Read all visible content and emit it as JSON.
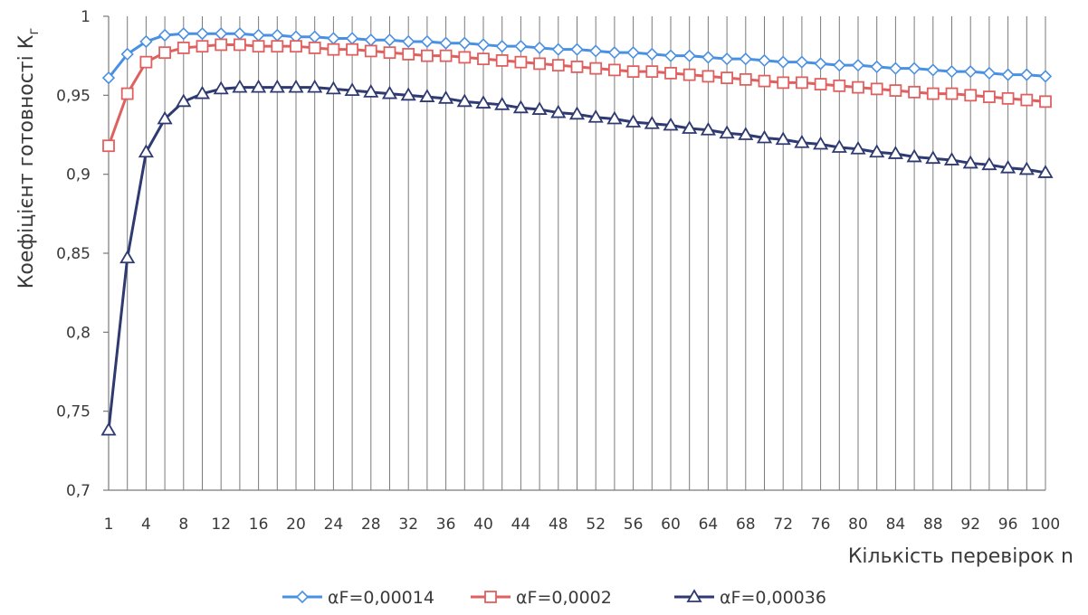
{
  "chart_data": {
    "type": "line",
    "title": "",
    "xlabel": "Кількість перевірок n",
    "ylabel": "Коефіцієнт готовності К",
    "ylabel_subscript": "г",
    "ylim": [
      0.7,
      1.0
    ],
    "yticks": [
      "0,7",
      "0,75",
      "0,8",
      "0,85",
      "0,9",
      "0,95",
      "1"
    ],
    "ytick_values": [
      0.7,
      0.75,
      0.8,
      0.85,
      0.9,
      0.95,
      1.0
    ],
    "x": [
      1,
      2,
      4,
      6,
      8,
      10,
      12,
      14,
      16,
      18,
      20,
      22,
      24,
      26,
      28,
      30,
      32,
      34,
      36,
      38,
      40,
      42,
      44,
      46,
      48,
      50,
      52,
      54,
      56,
      58,
      60,
      62,
      64,
      66,
      68,
      70,
      72,
      74,
      76,
      78,
      80,
      82,
      84,
      86,
      88,
      90,
      92,
      94,
      96,
      98,
      100
    ],
    "xtick_labels": [
      "1",
      "4",
      "8",
      "12",
      "16",
      "20",
      "24",
      "28",
      "32",
      "36",
      "40",
      "44",
      "48",
      "52",
      "56",
      "60",
      "64",
      "68",
      "72",
      "76",
      "80",
      "84",
      "88",
      "92",
      "96",
      "100"
    ],
    "xtick_indices": [
      0,
      2,
      4,
      6,
      8,
      10,
      12,
      14,
      16,
      18,
      20,
      22,
      24,
      26,
      28,
      30,
      32,
      34,
      36,
      38,
      40,
      42,
      44,
      46,
      48,
      50
    ],
    "grid": "vertical",
    "legend": "bottom",
    "series": [
      {
        "name": "αF=0,00014",
        "color": "#4a90e2",
        "marker": "diamond",
        "values": [
          0.961,
          0.976,
          0.984,
          0.988,
          0.989,
          0.989,
          0.989,
          0.989,
          0.988,
          0.988,
          0.987,
          0.987,
          0.986,
          0.986,
          0.985,
          0.985,
          0.984,
          0.984,
          0.983,
          0.983,
          0.982,
          0.981,
          0.981,
          0.98,
          0.979,
          0.979,
          0.978,
          0.977,
          0.977,
          0.976,
          0.975,
          0.975,
          0.974,
          0.973,
          0.973,
          0.972,
          0.971,
          0.971,
          0.97,
          0.969,
          0.969,
          0.968,
          0.967,
          0.967,
          0.966,
          0.965,
          0.965,
          0.964,
          0.963,
          0.963,
          0.962
        ]
      },
      {
        "name": "αF=0,0002",
        "color": "#e06060",
        "marker": "square",
        "values": [
          0.918,
          0.951,
          0.971,
          0.977,
          0.98,
          0.981,
          0.982,
          0.982,
          0.981,
          0.981,
          0.981,
          0.98,
          0.979,
          0.979,
          0.978,
          0.977,
          0.976,
          0.975,
          0.975,
          0.974,
          0.973,
          0.972,
          0.971,
          0.97,
          0.969,
          0.968,
          0.967,
          0.966,
          0.965,
          0.965,
          0.964,
          0.963,
          0.962,
          0.961,
          0.96,
          0.959,
          0.958,
          0.958,
          0.957,
          0.956,
          0.955,
          0.954,
          0.953,
          0.952,
          0.951,
          0.951,
          0.95,
          0.949,
          0.948,
          0.947,
          0.946
        ]
      },
      {
        "name": "αF=0,00036",
        "color": "#2e3a70",
        "marker": "triangle",
        "values": [
          0.738,
          0.847,
          0.914,
          0.935,
          0.946,
          0.951,
          0.954,
          0.955,
          0.955,
          0.955,
          0.955,
          0.955,
          0.954,
          0.953,
          0.952,
          0.951,
          0.95,
          0.949,
          0.948,
          0.946,
          0.945,
          0.944,
          0.942,
          0.941,
          0.939,
          0.938,
          0.936,
          0.935,
          0.933,
          0.932,
          0.931,
          0.929,
          0.928,
          0.926,
          0.925,
          0.923,
          0.922,
          0.92,
          0.919,
          0.917,
          0.916,
          0.914,
          0.913,
          0.911,
          0.91,
          0.909,
          0.907,
          0.906,
          0.904,
          0.903,
          0.901
        ]
      }
    ]
  }
}
